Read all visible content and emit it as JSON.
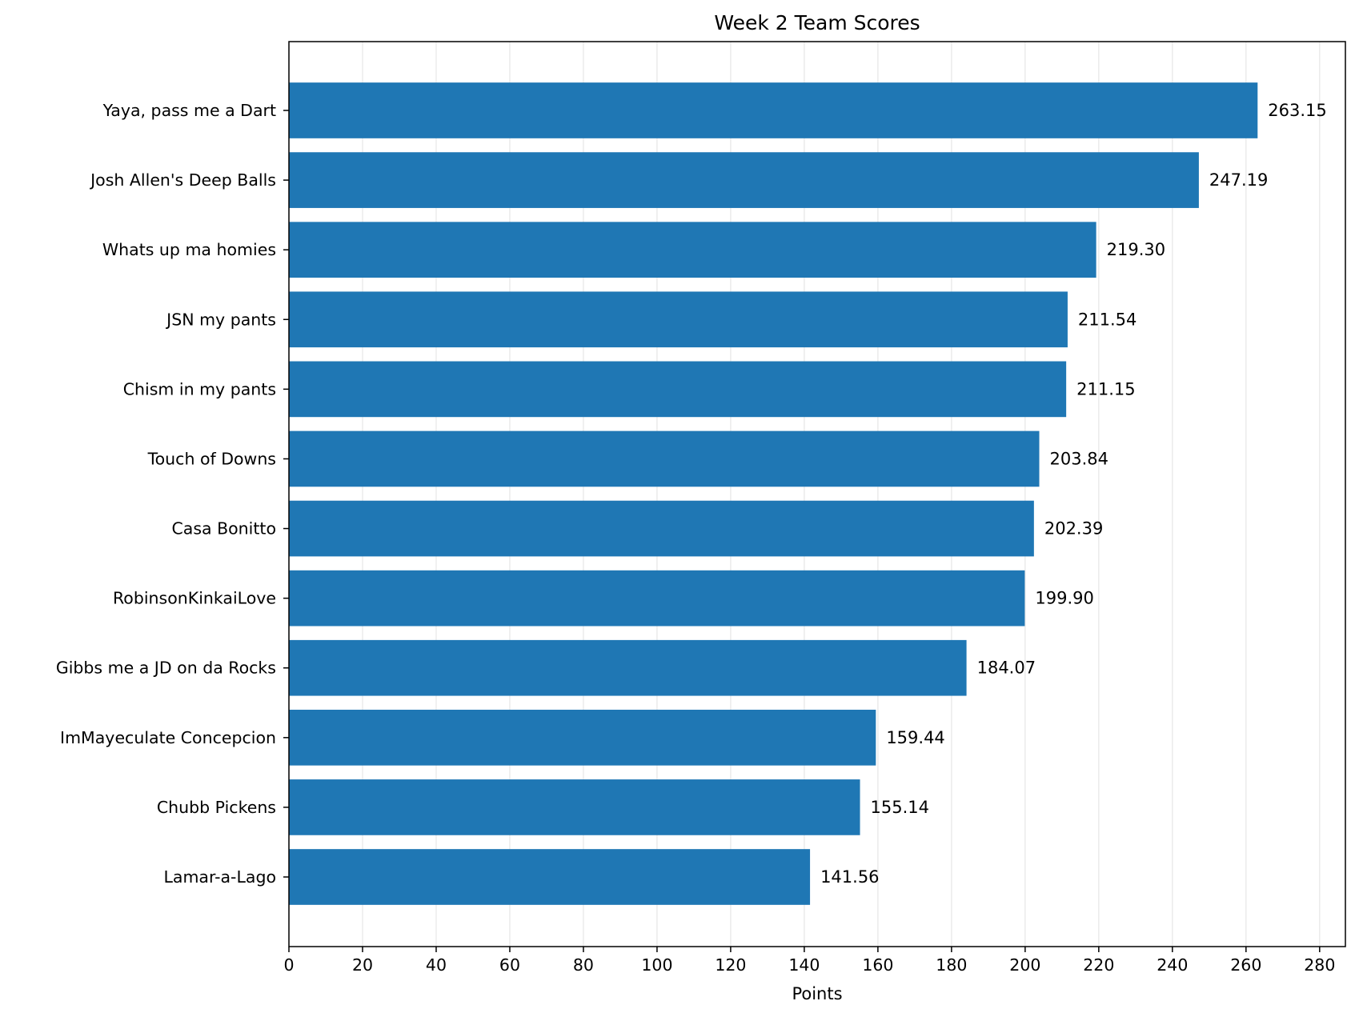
{
  "chart_data": {
    "type": "bar",
    "orientation": "horizontal",
    "title": "Week 2 Team Scores",
    "xlabel": "Points",
    "ylabel": "",
    "xlim": [
      0,
      287
    ],
    "x_ticks": [
      0,
      20,
      40,
      60,
      80,
      100,
      120,
      140,
      160,
      180,
      200,
      220,
      240,
      260,
      280
    ],
    "grid": "vertical",
    "bar_color": "#1f77b4",
    "categories": [
      "Yaya, pass me a Dart",
      "Josh Allen's Deep Balls",
      "Whats up ma homies",
      "JSN my pants",
      "Chism in my pants",
      "Touch of Downs",
      "Casa Bonitto",
      "RobinsonKinkaiLove",
      "Gibbs me a JD on da Rocks",
      "ImMayeculate Concepcion",
      "Chubb Pickens",
      "Lamar-a-Lago"
    ],
    "values": [
      263.15,
      247.19,
      219.3,
      211.54,
      211.15,
      203.84,
      202.39,
      199.9,
      184.07,
      159.44,
      155.14,
      141.56
    ],
    "value_labels": [
      "263.15",
      "247.19",
      "219.30",
      "211.54",
      "211.15",
      "203.84",
      "202.39",
      "199.90",
      "184.07",
      "159.44",
      "155.14",
      "141.56"
    ]
  }
}
